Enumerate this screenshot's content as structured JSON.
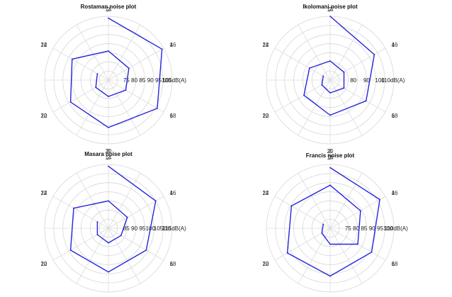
{
  "series_color": "#2424e0",
  "chart_data": [
    {
      "type": "polar-line",
      "title": "Rostaman noise plot",
      "angle_ticks": [
        "2",
        "4",
        "6",
        "8",
        "10",
        "12",
        "14",
        "16",
        "18",
        "20",
        "22",
        "24"
      ],
      "radial_ticks": [
        "75",
        "80",
        "85",
        "90",
        "95",
        "100",
        "105dB(A)"
      ],
      "rlim": [
        70,
        105
      ],
      "hours": [
        2,
        4,
        6,
        8,
        10,
        12,
        14,
        16,
        18,
        20,
        22,
        24
      ],
      "values": [
        104,
        104,
        101,
        96,
        94,
        93,
        86,
        83,
        81,
        79,
        78,
        77
      ]
    },
    {
      "type": "polar-line",
      "title": "Ikolomani noise plot",
      "angle_ticks": [
        "2",
        "4",
        "6",
        "8",
        "10",
        "12",
        "14",
        "16",
        "18",
        "20",
        "22",
        "24"
      ],
      "radial_ticks": [
        "80",
        "90",
        "100",
        "110dB(A)"
      ],
      "rlim": [
        70,
        110
      ],
      "hours": [
        2,
        4,
        6,
        8,
        10,
        12,
        14,
        16,
        18,
        20,
        22,
        24
      ],
      "values": [
        110,
        102,
        96,
        92,
        89,
        85,
        82,
        80,
        80,
        78,
        76,
        75
      ]
    },
    {
      "type": "polar-line",
      "title": "Masara noise plot",
      "angle_ticks": [
        "2",
        "4",
        "6",
        "8",
        "10",
        "12",
        "14",
        "16",
        "18",
        "20",
        "22",
        "24"
      ],
      "radial_ticks": [
        "85",
        "90",
        "95",
        "100",
        "105",
        "110",
        "115dB(A)"
      ],
      "rlim": [
        80,
        115
      ],
      "hours": [
        2,
        4,
        6,
        8,
        10,
        12,
        14,
        16,
        18,
        20,
        22,
        24
      ],
      "values": [
        114,
        110,
        104,
        104,
        104,
        102,
        95,
        92,
        88,
        88,
        87,
        87
      ]
    },
    {
      "type": "polar-line",
      "title": "Francis noise plot",
      "angle_ticks": [
        "2",
        "4",
        "6",
        "8",
        "10",
        "12",
        "14",
        "16",
        "18",
        "20",
        "22",
        "24"
      ],
      "radial_ticks": [
        "75",
        "80",
        "85",
        "90",
        "95",
        "100",
        "110dB(A)"
      ],
      "rlim": [
        70,
        110
      ],
      "hours": [
        2,
        4,
        6,
        8,
        10,
        12,
        14,
        16,
        18,
        20,
        22,
        24
      ],
      "values": [
        108,
        106,
        100,
        100,
        101,
        98,
        97,
        92,
        90,
        80,
        76,
        75
      ]
    }
  ]
}
